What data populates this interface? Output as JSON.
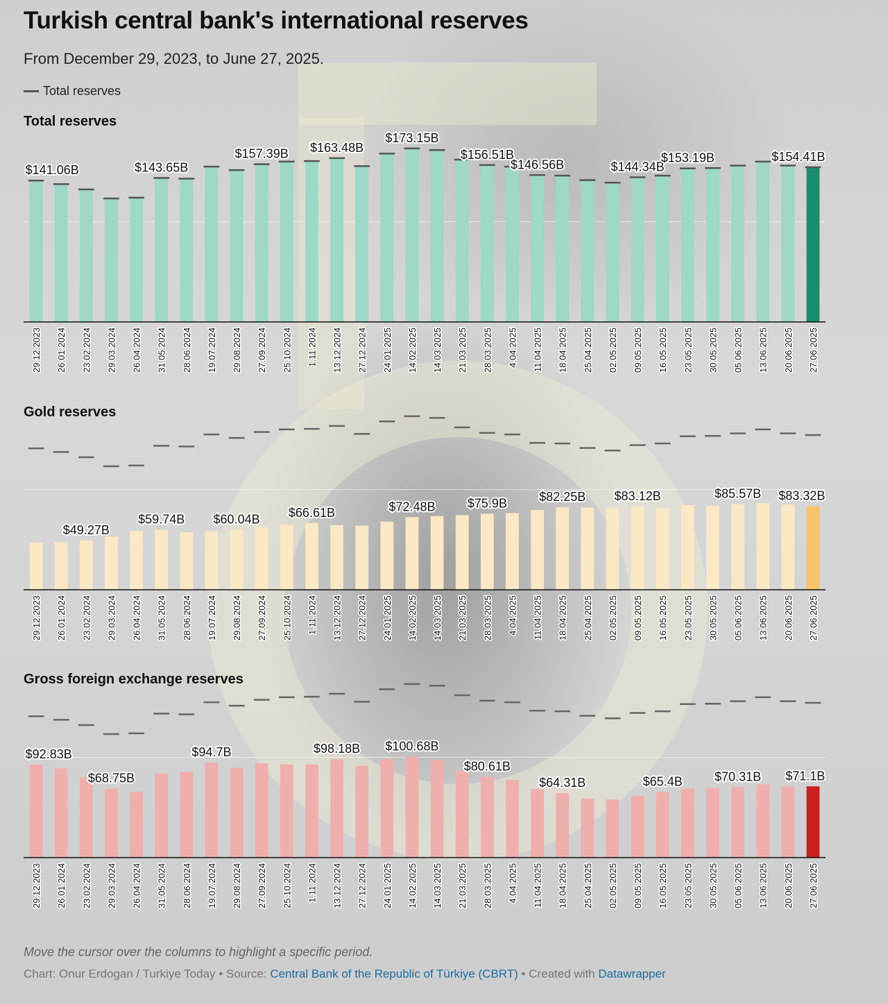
{
  "title": "Turkish central bank's international reserves",
  "subtitle": "From December 29, 2023, to June 27, 2025.",
  "legend": {
    "label": "Total reserves",
    "color": "#555555"
  },
  "note": "Move the cursor over the columns to highlight a specific period.",
  "footer": {
    "credit": "Chart: Onur Erdogan / Turkiye Today",
    "separator": "•",
    "source_prefix": "Source:",
    "source_link": "Central Bank of the Republic of Türkiye (CBRT)",
    "created_prefix": "Created with",
    "created_link": "Datawrapper"
  },
  "chart_data": [
    {
      "type": "bar",
      "title": "Total reserves",
      "unit_prefix": "$",
      "unit_suffix": "B",
      "bar_color": "#9dd8c8",
      "highlight_color": "#1a8c6e",
      "ylim": [
        0,
        180
      ],
      "gridlines": [
        100
      ],
      "categories": [
        "29.12.2023",
        "26.01.2024",
        "23.02.2024",
        "29.03.2024",
        "26.04.2024",
        "31.05.2024",
        "28.06.2024",
        "19.07.2024",
        "29.08.2024",
        "27.09.2024",
        "25.10.2024",
        "1.11.2024",
        "13.12.2024",
        "27.12.2024",
        "24.01.2025",
        "14.02.2025",
        "14.03.2025",
        "21.03.2025",
        "28.03.2025",
        "4.04.2025",
        "11.04.2025",
        "18.04.2025",
        "25.04.2025",
        "02.05.2025",
        "09.05.2025",
        "16.05.2025",
        "23.05.2025",
        "30.05.2025",
        "05.06.2025",
        "13.06.2025",
        "20.06.2025",
        "27.06.2025"
      ],
      "values": [
        141.06,
        137.5,
        132.2,
        123.2,
        124.0,
        143.65,
        143.0,
        155.0,
        151.5,
        157.39,
        160.0,
        160.5,
        163.48,
        155.5,
        168.0,
        173.15,
        171.5,
        162.0,
        156.51,
        155.0,
        146.56,
        146.0,
        141.5,
        139.0,
        144.34,
        146.0,
        153.19,
        153.5,
        156.0,
        160.0,
        156.0,
        154.41
      ],
      "labeled": [
        0,
        5,
        9,
        12,
        15,
        18,
        20,
        24,
        26,
        31
      ],
      "labels": [
        "$141.06B",
        "$143.65B",
        "$157.39B",
        "$163.48B",
        "$173.15B",
        "$156.51B",
        "$146.56B",
        "$144.34B",
        "$153.19B",
        "$154.41B"
      ]
    },
    {
      "type": "bar",
      "title": "Gold reserves",
      "unit_prefix": "$",
      "unit_suffix": "B",
      "bar_color": "#fbe8c4",
      "highlight_color": "#f7c36b",
      "ylim": [
        0,
        180
      ],
      "gridlines": [
        100
      ],
      "reference_series": "Total reserves",
      "categories": [
        "29.12.2023",
        "26.01.2024",
        "23.02.2024",
        "29.03.2024",
        "26.04.2024",
        "31.05.2024",
        "28.06.2024",
        "19.07.2024",
        "29.08.2024",
        "27.09.2024",
        "25.10.2024",
        "1.11.2024",
        "13.12.2024",
        "27.12.2024",
        "24.01.2025",
        "14.02.2025",
        "14.03.2025",
        "21.03.2025",
        "28.03.2025",
        "4.04.2025",
        "11.04.2025",
        "18.04.2025",
        "25.04.2025",
        "02.05.2025",
        "09.05.2025",
        "16.05.2025",
        "23.05.2025",
        "30.05.2025",
        "05.06.2025",
        "13.06.2025",
        "20.06.2025",
        "27.06.2025"
      ],
      "values": [
        47.0,
        47.5,
        49.27,
        53.0,
        58.5,
        59.74,
        57.5,
        58.5,
        60.04,
        62.5,
        65.0,
        66.61,
        64.5,
        64.0,
        68.0,
        72.48,
        73.5,
        74.5,
        75.9,
        76.5,
        79.5,
        82.25,
        82.0,
        81.0,
        83.12,
        81.0,
        84.5,
        84.0,
        85.57,
        86.5,
        85.0,
        83.32
      ],
      "labeled": [
        2,
        5,
        8,
        11,
        15,
        18,
        21,
        24,
        28,
        31
      ],
      "labels": [
        "$49.27B",
        "$59.74B",
        "$60.04B",
        "$66.61B",
        "$72.48B",
        "$75.9B",
        "$82.25B",
        "$83.12B",
        "$85.57B",
        "$83.32B"
      ]
    },
    {
      "type": "bar",
      "title": "Gross foreign exchange reserves",
      "unit_prefix": "$",
      "unit_suffix": "B",
      "bar_color": "#efb0ad",
      "highlight_color": "#c9211e",
      "ylim": [
        0,
        180
      ],
      "gridlines": [
        100
      ],
      "reference_series": "Total reserves",
      "categories": [
        "29.12.2023",
        "26.01.2024",
        "23.02.2024",
        "29.03.2024",
        "26.04.2024",
        "31.05.2024",
        "28.06.2024",
        "19.07.2024",
        "29.08.2024",
        "27.09.2024",
        "25.10.2024",
        "1.11.2024",
        "13.12.2024",
        "27.12.2024",
        "24.01.2025",
        "14.02.2025",
        "14.03.2025",
        "21.03.2025",
        "28.03.2025",
        "4.04.2025",
        "11.04.2025",
        "18.04.2025",
        "25.04.2025",
        "02.05.2025",
        "09.05.2025",
        "16.05.2025",
        "23.05.2025",
        "30.05.2025",
        "05.06.2025",
        "13.06.2025",
        "20.06.2025",
        "27.06.2025"
      ],
      "values": [
        92.83,
        89.0,
        80.0,
        68.75,
        65.5,
        84.0,
        85.5,
        94.7,
        89.5,
        94.0,
        93.0,
        93.0,
        98.18,
        91.5,
        98.5,
        100.68,
        97.5,
        87.0,
        80.61,
        77.5,
        68.5,
        64.31,
        59.0,
        58.0,
        61.5,
        65.4,
        69.0,
        69.5,
        70.31,
        73.0,
        71.0,
        71.1
      ],
      "labeled": [
        0,
        3,
        7,
        12,
        15,
        18,
        21,
        25,
        28,
        31
      ],
      "labels": [
        "$92.83B",
        "$68.75B",
        "$94.7B",
        "$98.18B",
        "$100.68B",
        "$80.61B",
        "$64.31B",
        "$65.4B",
        "$70.31B",
        "$71.1B"
      ]
    }
  ]
}
